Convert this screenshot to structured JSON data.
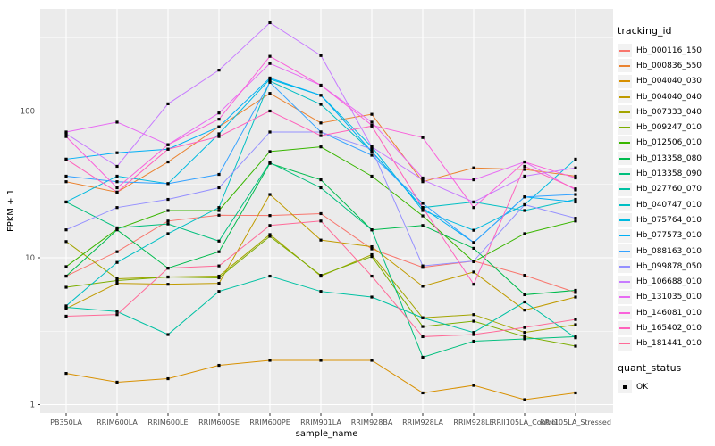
{
  "figure": {
    "y_axis_title": "FPKM + 1",
    "x_axis_title": "sample_name",
    "y_tick_labels": [
      "1",
      "10",
      "100"
    ],
    "legend_title": "tracking_id",
    "quant_legend": {
      "title": "quant_status",
      "items": [
        {
          "label": "OK",
          "marker": "black-square-point"
        }
      ]
    },
    "colors": {
      "panel_bg": "#EBEBEB",
      "grid": "#FFFFFF",
      "tick_text": "#4D4D4D",
      "axis_title_text": "#000000",
      "point": "#000000",
      "legend_key_bg": "#F2F2F2"
    }
  },
  "chart_data": {
    "type": "line",
    "title": "",
    "xlabel": "sample_name",
    "ylabel": "FPKM + 1",
    "y_scale": "log10",
    "ylim": [
      0.87,
      500
    ],
    "y_ticks": [
      1,
      10,
      100
    ],
    "y_minor_ticks": [
      3.162,
      31.62,
      316.2
    ],
    "grid": true,
    "legend_position": "right",
    "legend_title": "tracking_id",
    "point_legend": {
      "title": "quant_status",
      "items": [
        "OK"
      ]
    },
    "marker": "filled-black-square",
    "categories": [
      "PB350LA",
      "RRIM600LA",
      "RRIM600LE",
      "RRIM600SE",
      "RRIM600PE",
      "RRIM901LA",
      "RRIM928BA",
      "RRIM928LA",
      "RRIM928LE",
      "RRII105LA_Control",
      "RRII105LA_Stressed"
    ],
    "series": [
      {
        "name": "Hb_000116_150",
        "color": "#F8766D",
        "values": [
          7.5,
          11,
          17.8,
          19.5,
          19.4,
          20,
          11.5,
          8.6,
          9.5,
          7.6,
          5.8
        ]
      },
      {
        "name": "Hb_000836_550",
        "color": "#EA8331",
        "values": [
          33,
          28,
          45,
          78,
          132,
          83,
          95,
          33,
          41,
          40,
          36
        ]
      },
      {
        "name": "Hb_004040_030",
        "color": "#D89000",
        "values": [
          1.63,
          1.42,
          1.5,
          1.85,
          2.0,
          2.0,
          2.0,
          1.2,
          1.35,
          1.08,
          1.2
        ]
      },
      {
        "name": "Hb_004040_040",
        "color": "#C09B00",
        "values": [
          4.5,
          6.7,
          6.6,
          6.7,
          27,
          13.2,
          11.9,
          6.4,
          8.0,
          4.4,
          5.4
        ]
      },
      {
        "name": "Hb_007333_040",
        "color": "#A3A500",
        "values": [
          12.9,
          7.2,
          7.4,
          7.5,
          14.4,
          7.5,
          10.5,
          3.9,
          4.1,
          3.1,
          3.5
        ]
      },
      {
        "name": "Hb_009247_010",
        "color": "#7CAE00",
        "values": [
          6.3,
          7.0,
          7.4,
          7.3,
          14.0,
          7.6,
          10.2,
          3.4,
          3.7,
          2.9,
          2.5
        ]
      },
      {
        "name": "Hb_012506_010",
        "color": "#39B600",
        "values": [
          8.7,
          15.7,
          21,
          21,
          53,
          57,
          36,
          19.3,
          9.4,
          14.6,
          17.8
        ]
      },
      {
        "name": "Hb_013358_080",
        "color": "#00BB4E",
        "values": [
          7.5,
          15.5,
          8.5,
          11,
          44,
          34,
          15.5,
          16.6,
          11.6,
          5.6,
          6.0
        ]
      },
      {
        "name": "Hb_013358_090",
        "color": "#00BF7D",
        "values": [
          24,
          16,
          17,
          13,
          44.5,
          30,
          15.5,
          2.1,
          2.7,
          2.8,
          2.9
        ]
      },
      {
        "name": "Hb_027760_070",
        "color": "#00C1A3",
        "values": [
          4.6,
          4.3,
          3.0,
          5.9,
          7.5,
          5.9,
          5.4,
          3.9,
          3.1,
          5.0,
          2.85
        ]
      },
      {
        "name": "Hb_040747_010",
        "color": "#00BFC4",
        "values": [
          4.7,
          9.3,
          14.6,
          22,
          160,
          111,
          53,
          22,
          24,
          21,
          25
        ]
      },
      {
        "name": "Hb_075764_010",
        "color": "#00BAE0",
        "values": [
          24,
          36,
          32,
          70,
          165,
          128,
          57,
          21,
          15.4,
          23,
          47
        ]
      },
      {
        "name": "Hb_077573_010",
        "color": "#00B0F6",
        "values": [
          47,
          52,
          55,
          78,
          168,
          128,
          53,
          21.9,
          12.7,
          26,
          24
        ]
      },
      {
        "name": "Hb_088163_010",
        "color": "#35A2FF",
        "values": [
          36,
          33,
          32,
          37,
          157,
          72,
          50,
          23.5,
          12.7,
          26,
          27
        ]
      },
      {
        "name": "Hb_099878_050",
        "color": "#9590FF",
        "values": [
          15.5,
          22,
          25,
          30,
          72,
          72,
          55,
          8.8,
          9.5,
          23,
          18.6
        ]
      },
      {
        "name": "Hb_106688_010",
        "color": "#C77CFF",
        "values": [
          70,
          42,
          112,
          190,
          400,
          239,
          57,
          34,
          24,
          36,
          41
        ]
      },
      {
        "name": "Hb_131035_010",
        "color": "#E76BF3",
        "values": [
          72,
          84,
          59,
          97,
          211,
          150,
          84,
          35,
          34,
          45,
          29
        ]
      },
      {
        "name": "Hb_146081_010",
        "color": "#FA62DB",
        "values": [
          67,
          30,
          59,
          88,
          236,
          150,
          80,
          66,
          22,
          45,
          35
        ]
      },
      {
        "name": "Hb_165402_010",
        "color": "#FF62BC",
        "values": [
          47,
          28,
          55,
          67,
          100,
          68,
          79,
          22,
          6.6,
          42,
          29.5
        ]
      },
      {
        "name": "Hb_181441_010",
        "color": "#FF6A98",
        "values": [
          4.0,
          4.1,
          8.5,
          8.8,
          16.6,
          17.8,
          7.5,
          2.9,
          3.0,
          3.35,
          3.8
        ]
      }
    ]
  }
}
